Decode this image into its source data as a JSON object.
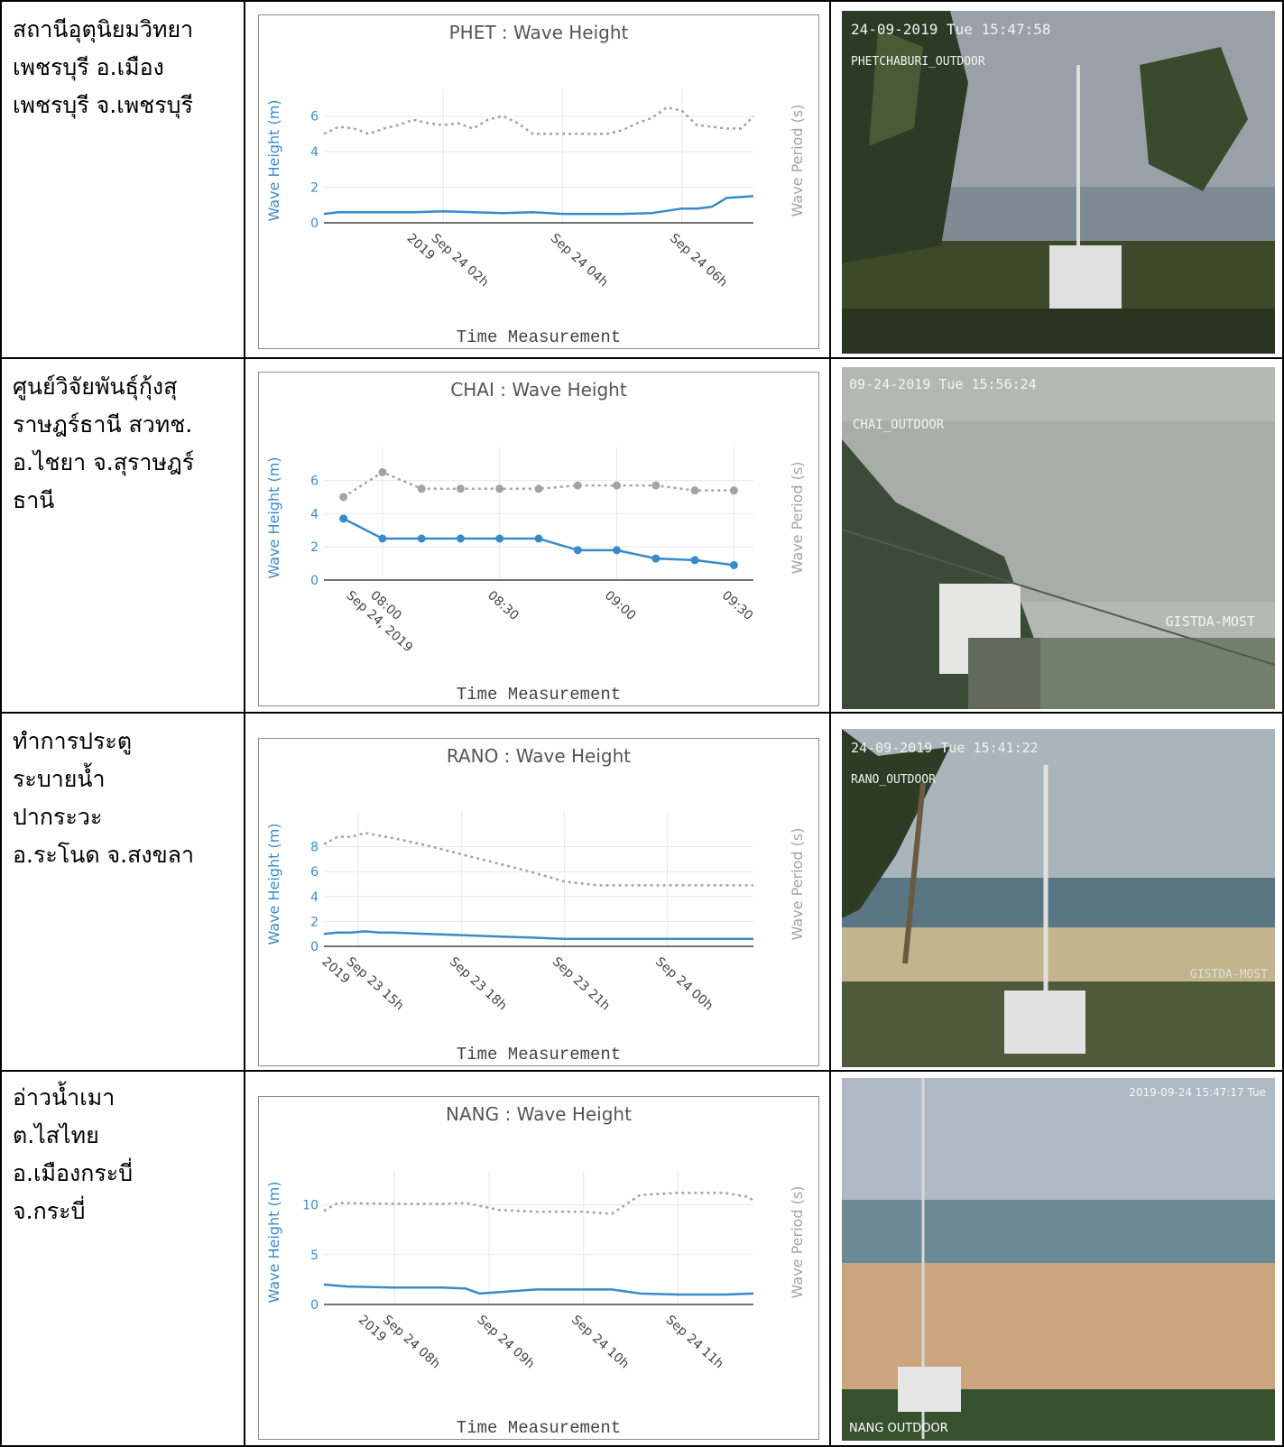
{
  "rows": [
    {
      "label": "สถานีอุตุนิยมวิทยา\nเพชรบุรี อ.เมือง\nเพชรบุรี จ.เพชรบุรี",
      "camera": {
        "timestamp": "24-09-2019 Tue 15:47:58",
        "caption": "PHETCHABURI_OUTDOOR",
        "watermark": ""
      }
    },
    {
      "label": "ศูนย์วิจัยพันธุ์กุ้งสุ\nราษฎร์ธานี สวทช.\nอ.ไชยา จ.สุราษฎร์\nธานี",
      "camera": {
        "timestamp": "09-24-2019 Tue 15:56:24",
        "caption": "CHAI_OUTDOOR",
        "watermark": "GISTDA-MOST"
      }
    },
    {
      "label": "ทำการประตู\nระบายน้ำ\nปากระวะ\nอ.ระโนด จ.สงขลา",
      "camera": {
        "timestamp": "24-09-2019 Tue 15:41:22",
        "caption": "RANO_OUTDOOR",
        "watermark": "GISTDA-MOST"
      }
    },
    {
      "label": "อ่าวน้ำเมา\nต.ไสไทย\nอ.เมืองกระบี่\nจ.กระบี่",
      "camera": {
        "timestamp": "2019-09-24 15:47:17 Tue",
        "caption": "NANG OUTDOOR",
        "watermark": ""
      }
    }
  ],
  "colors": {
    "height": "#3a8ac9",
    "period": "#a3a3a3",
    "axis": "#444444"
  },
  "chart_data": [
    {
      "type": "line",
      "title": "PHET : Wave Height",
      "xlabel": "Time Measurement",
      "ylabel": "Wave Height (m)",
      "y2label": "Wave Period (s)",
      "ylim": [
        0,
        7
      ],
      "yticks": [
        0,
        2,
        4,
        6
      ],
      "xlim": [
        0.0,
        7.2
      ],
      "xticks": [
        {
          "x": 2,
          "label": "Sep 24 02h\n2019"
        },
        {
          "x": 4,
          "label": "Sep 24 04h"
        },
        {
          "x": 6,
          "label": "Sep 24 06h"
        }
      ],
      "markers": false,
      "series": [
        {
          "role": "height",
          "x": [
            0.0,
            0.25,
            0.5,
            1.0,
            1.5,
            2.0,
            2.5,
            3.0,
            3.5,
            4.0,
            4.5,
            5.0,
            5.5,
            6.0,
            6.25,
            6.5,
            6.75,
            7.0,
            7.2
          ],
          "values": [
            0.5,
            0.6,
            0.6,
            0.6,
            0.6,
            0.65,
            0.6,
            0.55,
            0.6,
            0.5,
            0.5,
            0.5,
            0.55,
            0.8,
            0.8,
            0.9,
            1.4,
            1.45,
            1.5
          ]
        },
        {
          "role": "period",
          "x": [
            0.0,
            0.25,
            0.5,
            0.75,
            1.0,
            1.25,
            1.5,
            1.75,
            2.0,
            2.25,
            2.5,
            2.75,
            3.0,
            3.25,
            3.5,
            3.75,
            4.0,
            4.25,
            4.5,
            4.75,
            5.0,
            5.25,
            5.5,
            5.75,
            6.0,
            6.25,
            6.5,
            6.75,
            7.0,
            7.2
          ],
          "values": [
            5.0,
            5.4,
            5.3,
            5.0,
            5.3,
            5.5,
            5.8,
            5.6,
            5.5,
            5.6,
            5.3,
            5.8,
            6.0,
            5.6,
            5.0,
            5.0,
            5.0,
            5.0,
            5.0,
            5.0,
            5.2,
            5.6,
            5.9,
            6.5,
            6.3,
            5.5,
            5.4,
            5.3,
            5.3,
            6.0
          ]
        }
      ]
    },
    {
      "type": "line",
      "title": "CHAI : Wave Height",
      "xlabel": "Time Measurement",
      "ylabel": "Wave Height (m)",
      "y2label": "Wave Period (s)",
      "ylim": [
        0,
        7.5
      ],
      "yticks": [
        0,
        2,
        4,
        6
      ],
      "xlim": [
        -15,
        95
      ],
      "xticks": [
        {
          "x": 0,
          "label": "08:00\nSep 24, 2019"
        },
        {
          "x": 30,
          "label": "08:30"
        },
        {
          "x": 60,
          "label": "09:00"
        },
        {
          "x": 90,
          "label": "09:30"
        }
      ],
      "markers": true,
      "series": [
        {
          "role": "height",
          "x": [
            -10,
            0,
            10,
            20,
            30,
            40,
            50,
            60,
            70,
            80,
            90
          ],
          "values": [
            3.7,
            2.5,
            2.5,
            2.5,
            2.5,
            2.5,
            1.8,
            1.8,
            1.3,
            1.2,
            0.9
          ]
        },
        {
          "role": "period",
          "x": [
            -10,
            0,
            10,
            20,
            30,
            40,
            50,
            60,
            70,
            80,
            90
          ],
          "values": [
            5.0,
            6.5,
            5.5,
            5.5,
            5.5,
            5.5,
            5.7,
            5.7,
            5.7,
            5.4,
            5.4
          ]
        }
      ]
    },
    {
      "type": "line",
      "title": "RANO : Wave Height",
      "xlabel": "Time Measurement",
      "ylabel": "Wave Height (m)",
      "y2label": "Wave Period (s)",
      "ylim": [
        0,
        10
      ],
      "yticks": [
        0,
        2,
        4,
        6,
        8
      ],
      "xlim": [
        14.0,
        26.5
      ],
      "xticks": [
        {
          "x": 15,
          "label": "Sep 23 15h\n2019"
        },
        {
          "x": 18,
          "label": "Sep 23 18h"
        },
        {
          "x": 21,
          "label": "Sep 23 21h"
        },
        {
          "x": 24,
          "label": "Sep 24 00h"
        }
      ],
      "markers": false,
      "series": [
        {
          "role": "height",
          "x": [
            14.0,
            14.4,
            14.8,
            15.2,
            15.6,
            16,
            17,
            18,
            19,
            20,
            21,
            22,
            23,
            24,
            25,
            26,
            26.5
          ],
          "values": [
            1.0,
            1.1,
            1.1,
            1.2,
            1.1,
            1.1,
            1.0,
            0.9,
            0.8,
            0.7,
            0.6,
            0.6,
            0.6,
            0.6,
            0.6,
            0.6,
            0.6
          ]
        },
        {
          "role": "period",
          "x": [
            14.0,
            14.4,
            14.8,
            15.2,
            15.6,
            16,
            17,
            18,
            19,
            20,
            21,
            22,
            23,
            24,
            25,
            26,
            26.5
          ],
          "values": [
            8.2,
            8.8,
            8.8,
            9.1,
            8.9,
            8.7,
            8.1,
            7.4,
            6.7,
            6.0,
            5.2,
            4.9,
            4.9,
            4.9,
            4.9,
            4.9,
            4.9
          ]
        }
      ]
    },
    {
      "type": "line",
      "title": "NANG : Wave Height",
      "xlabel": "Time Measurement",
      "ylabel": "Wave Height (m)",
      "y2label": "Wave Period (s)",
      "ylim": [
        0,
        12.5
      ],
      "yticks": [
        0,
        5,
        10
      ],
      "xlim": [
        7.25,
        11.8
      ],
      "xticks": [
        {
          "x": 8,
          "label": "Sep 24 08h\n2019"
        },
        {
          "x": 9,
          "label": "Sep 24 09h"
        },
        {
          "x": 10,
          "label": "Sep 24 10h"
        },
        {
          "x": 11,
          "label": "Sep 24 11h"
        }
      ],
      "markers": false,
      "series": [
        {
          "role": "height",
          "x": [
            7.25,
            7.5,
            8.0,
            8.5,
            8.75,
            8.9,
            9.2,
            9.5,
            10.0,
            10.3,
            10.6,
            11.0,
            11.5,
            11.8
          ],
          "values": [
            2.0,
            1.8,
            1.7,
            1.7,
            1.6,
            1.1,
            1.3,
            1.5,
            1.5,
            1.5,
            1.1,
            1.0,
            1.0,
            1.1
          ]
        },
        {
          "role": "period",
          "x": [
            7.25,
            7.4,
            8.0,
            8.5,
            8.75,
            9.1,
            9.5,
            10.0,
            10.3,
            10.6,
            11.0,
            11.5,
            11.75,
            11.8
          ],
          "values": [
            9.4,
            10.2,
            10.1,
            10.1,
            10.2,
            9.5,
            9.3,
            9.3,
            9.1,
            11.0,
            11.2,
            11.2,
            10.8,
            10.4
          ]
        }
      ]
    }
  ]
}
